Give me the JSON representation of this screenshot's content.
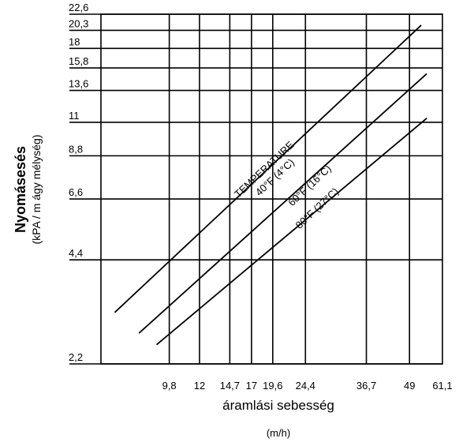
{
  "chart_data": {
    "type": "line",
    "title": "",
    "xlabel": "áramlási sebesség",
    "xunit": "(m/h)",
    "ylabel": "Nyomásesés",
    "ylabel_sub": "(kPA / m ágy mélység)",
    "x_scale": "log",
    "y_scale": "log",
    "xlim": [
      6.2,
      61.1
    ],
    "ylim": [
      2.2,
      22.6
    ],
    "x_ticks": [
      "9,8",
      "12",
      "14,7",
      "17",
      "19,6",
      "24,4",
      "36,7",
      "49",
      "61,1"
    ],
    "x_tick_values": [
      9.8,
      12,
      14.7,
      17,
      19.6,
      24.4,
      36.7,
      49,
      61.1
    ],
    "y_ticks": [
      "22,6",
      "20,3",
      "18",
      "15,8",
      "13,6",
      "11",
      "8,8",
      "6,6",
      "4,4",
      "2,2"
    ],
    "y_tick_values": [
      22.6,
      20.3,
      18,
      15.8,
      13.6,
      11,
      8.8,
      6.6,
      4.4,
      2.2
    ],
    "grid": true,
    "annotations": [
      {
        "text": "TEMPERATURE",
        "x": 18.8,
        "y": 7.9
      },
      {
        "text": "40°F (4°C)",
        "x": 20.2,
        "y": 7.5
      },
      {
        "text": "60°F (16°C)",
        "x": 25.5,
        "y": 7.1
      },
      {
        "text": "80°F (27°C)",
        "x": 26.8,
        "y": 6.1
      }
    ],
    "series": [
      {
        "name": "40°F (4°C)",
        "x": [
          6.8,
          53.0
        ],
        "y": [
          3.1,
          21.0
        ]
      },
      {
        "name": "60°F (16°C)",
        "x": [
          8.0,
          55.0
        ],
        "y": [
          2.7,
          15.2
        ]
      },
      {
        "name": "80°F (27°C)",
        "x": [
          9.0,
          55.0
        ],
        "y": [
          2.5,
          11.3
        ]
      }
    ]
  }
}
